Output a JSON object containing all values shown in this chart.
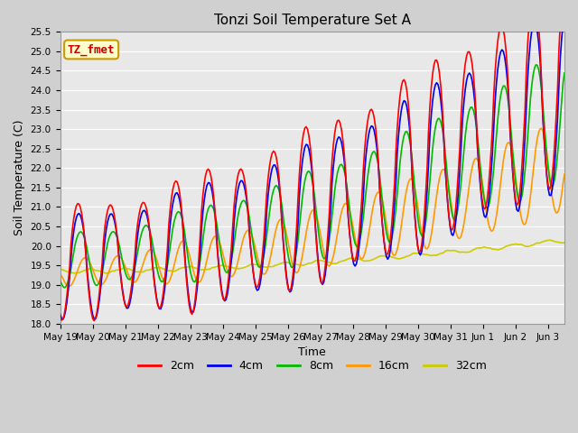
{
  "title": "Tonzi Soil Temperature Set A",
  "xlabel": "Time",
  "ylabel": "Soil Temperature (C)",
  "annotation_text": "TZ_fmet",
  "annotation_color": "#cc0000",
  "annotation_bg": "#ffffcc",
  "annotation_border": "#cc9900",
  "ylim": [
    18.0,
    25.5
  ],
  "yticks": [
    18.0,
    18.5,
    19.0,
    19.5,
    20.0,
    20.5,
    21.0,
    21.5,
    22.0,
    22.5,
    23.0,
    23.5,
    24.0,
    24.5,
    25.0,
    25.5
  ],
  "line_colors": {
    "2cm": "#ff0000",
    "4cm": "#0000ee",
    "8cm": "#00bb00",
    "16cm": "#ff9900",
    "32cm": "#cccc00"
  },
  "line_widths": {
    "2cm": 1.2,
    "4cm": 1.2,
    "8cm": 1.2,
    "16cm": 1.2,
    "32cm": 1.2
  },
  "xtick_labels": [
    "May 19",
    "May 20",
    "May 21",
    "May 22",
    "May 23",
    "May 24",
    "May 25",
    "May 26",
    "May 27",
    "May 28",
    "May 29",
    "May 30",
    "May 31",
    "Jun 1",
    "Jun 2",
    "Jun 3"
  ],
  "background_color": "#e8e8e8",
  "grid_color": "#ffffff",
  "title_fontsize": 11,
  "label_fontsize": 9,
  "tick_fontsize": 7.5,
  "legend_fontsize": 9
}
